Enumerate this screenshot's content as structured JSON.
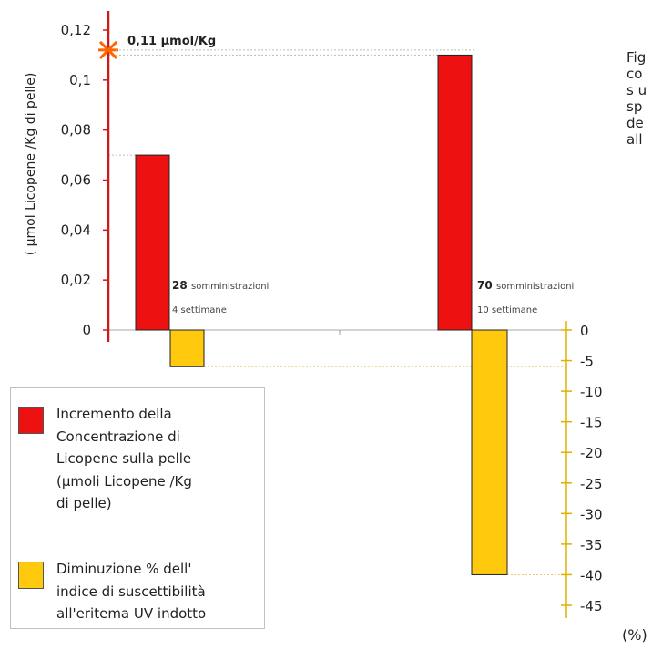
{
  "chart_data": {
    "type": "bar",
    "left_axis": {
      "label": "( µmol Licopene /Kg di pelle)",
      "ticks": [
        "0",
        "0,02",
        "0,04",
        "0,06",
        "0,08",
        "0,1",
        "0,12"
      ],
      "range": [
        0,
        0.12
      ]
    },
    "right_axis": {
      "ticks": [
        "0",
        "-5",
        "-10",
        "-15",
        "-20",
        "-25",
        "-30",
        "-35",
        "-40",
        "-45"
      ],
      "range": [
        -45,
        0
      ],
      "unit": "(%)"
    },
    "groups": [
      {
        "count": "28",
        "count_text": "somministrazioni",
        "weeks_text": "4 settimane"
      },
      {
        "count": "70",
        "count_text": "somministrazioni",
        "weeks_text": "10 settimane"
      }
    ],
    "series": [
      {
        "legend": "Incremento della Concentrazione di Licopene sulla pelle (µmoli Licopene /Kg di pelle)",
        "color": "#ee1111",
        "axis": "left",
        "values": [
          0.07,
          0.11
        ]
      },
      {
        "legend": "Diminuzione % dell' indice di suscettibilità all'eritema UV indotto",
        "color": "#ffc90e",
        "axis": "right",
        "values": [
          -6,
          -40
        ]
      }
    ],
    "annotation": "0,11 µmol/Kg",
    "grid": false,
    "legend_position": "bottom-left"
  },
  "legend_items": [
    {
      "text": "Incremento della\nConcentrazione di\nLicopene sulla pelle\n(µmoli Licopene /Kg\ndi pelle)"
    },
    {
      "text": "Diminuzione % dell'\nindice di suscettibilità\nall'eritema UV indotto"
    }
  ],
  "side_text": "Fig\nco\ns u\nsp\nde\nall",
  "colors": {
    "left_axis": "#cc1a1a",
    "right_axis": "#e0b000",
    "marker": "#ff6600"
  }
}
